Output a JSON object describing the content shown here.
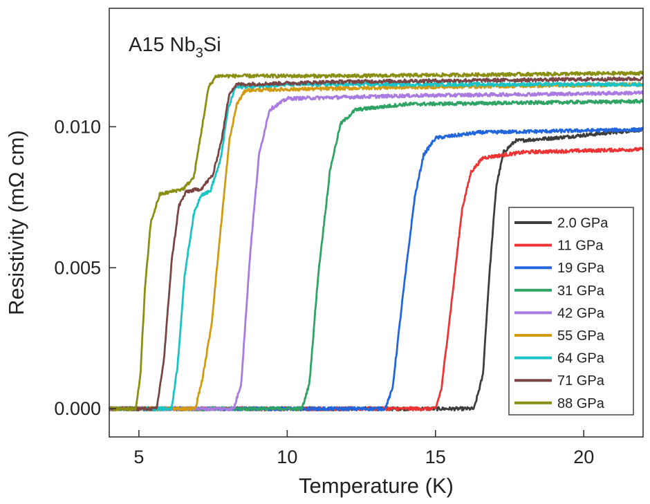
{
  "chart_data": {
    "type": "line",
    "annotation": {
      "main": "A15 Nb",
      "sub": "3",
      "suffix": "Si"
    },
    "xlabel": "Temperature (K)",
    "ylabel": "Resistivity (mΩ cm)",
    "xlim": [
      4,
      22
    ],
    "ylim": [
      -0.001,
      0.0142
    ],
    "x_ticks": [
      5,
      10,
      15,
      20
    ],
    "y_ticks": [
      0.0,
      0.005,
      0.01
    ],
    "x_tick_labels": [
      "5",
      "10",
      "15",
      "20"
    ],
    "y_tick_labels": [
      "0.000",
      "0.005",
      "0.010"
    ],
    "grid": false,
    "legend_position": "bottom-right",
    "series": [
      {
        "name": "2.0 GPa",
        "color": "#3d3d3d",
        "points": [
          [
            4,
            0
          ],
          [
            16.3,
            0
          ],
          [
            16.6,
            0.0012
          ],
          [
            16.8,
            0.0045
          ],
          [
            17.05,
            0.0079
          ],
          [
            17.3,
            0.0091
          ],
          [
            17.7,
            0.0095
          ],
          [
            19,
            0.0096
          ],
          [
            22,
            0.0099
          ]
        ]
      },
      {
        "name": "11 GPa",
        "color": "#ee3333",
        "points": [
          [
            4,
            0
          ],
          [
            15.0,
            0
          ],
          [
            15.2,
            0.0007
          ],
          [
            15.6,
            0.0043
          ],
          [
            15.9,
            0.0071
          ],
          [
            16.2,
            0.0084
          ],
          [
            16.6,
            0.0089
          ],
          [
            18,
            0.0091
          ],
          [
            22,
            0.0092
          ]
        ]
      },
      {
        "name": "19 GPa",
        "color": "#2266dd",
        "points": [
          [
            4,
            0
          ],
          [
            13.3,
            0
          ],
          [
            13.55,
            0.0007
          ],
          [
            13.9,
            0.004
          ],
          [
            14.3,
            0.0075
          ],
          [
            14.6,
            0.009
          ],
          [
            15.0,
            0.0096
          ],
          [
            16.5,
            0.0098
          ],
          [
            22,
            0.0099
          ]
        ]
      },
      {
        "name": "31 GPa",
        "color": "#2ea364",
        "points": [
          [
            4,
            0
          ],
          [
            10.5,
            0
          ],
          [
            10.75,
            0.0009
          ],
          [
            11.05,
            0.0048
          ],
          [
            11.45,
            0.0085
          ],
          [
            11.8,
            0.0101
          ],
          [
            12.3,
            0.0106
          ],
          [
            14,
            0.0108
          ],
          [
            22,
            0.0109
          ]
        ]
      },
      {
        "name": "42 GPa",
        "color": "#a97be0",
        "points": [
          [
            4,
            0
          ],
          [
            8.2,
            0
          ],
          [
            8.45,
            0.0009
          ],
          [
            8.75,
            0.0055
          ],
          [
            9.05,
            0.009
          ],
          [
            9.4,
            0.0106
          ],
          [
            10.0,
            0.011
          ],
          [
            14,
            0.0111
          ],
          [
            22,
            0.0112
          ]
        ]
      },
      {
        "name": "55 GPa",
        "color": "#d19a10",
        "points": [
          [
            4,
            0
          ],
          [
            6.9,
            0
          ],
          [
            7.15,
            0.0011
          ],
          [
            7.45,
            0.003
          ],
          [
            7.75,
            0.0063
          ],
          [
            8.05,
            0.0095
          ],
          [
            8.3,
            0.0108
          ],
          [
            8.6,
            0.0113
          ],
          [
            14,
            0.0114
          ],
          [
            22,
            0.0115
          ]
        ]
      },
      {
        "name": "64 GPa",
        "color": "#19c2c4",
        "points": [
          [
            4,
            0
          ],
          [
            6.1,
            0
          ],
          [
            6.3,
            0.0015
          ],
          [
            6.55,
            0.0048
          ],
          [
            6.85,
            0.0069
          ],
          [
            7.1,
            0.0076
          ],
          [
            7.4,
            0.0077
          ],
          [
            7.75,
            0.0088
          ],
          [
            8.0,
            0.0106
          ],
          [
            8.25,
            0.0114
          ],
          [
            10,
            0.0115
          ],
          [
            22,
            0.0115
          ]
        ]
      },
      {
        "name": "71 GPa",
        "color": "#7a4545",
        "points": [
          [
            4,
            0
          ],
          [
            5.6,
            0
          ],
          [
            5.85,
            0.0018
          ],
          [
            6.1,
            0.0052
          ],
          [
            6.35,
            0.0072
          ],
          [
            6.6,
            0.0077
          ],
          [
            7.1,
            0.0078
          ],
          [
            7.5,
            0.0083
          ],
          [
            7.8,
            0.0096
          ],
          [
            8.05,
            0.0112
          ],
          [
            8.3,
            0.0115
          ],
          [
            12,
            0.0116
          ],
          [
            22,
            0.0117
          ]
        ]
      },
      {
        "name": "88 GPa",
        "color": "#8a8f14",
        "points": [
          [
            4,
            0
          ],
          [
            4.9,
            0
          ],
          [
            5.05,
            0.0012
          ],
          [
            5.2,
            0.0042
          ],
          [
            5.4,
            0.0066
          ],
          [
            5.7,
            0.0076
          ],
          [
            6.5,
            0.0078
          ],
          [
            6.85,
            0.0082
          ],
          [
            7.1,
            0.0098
          ],
          [
            7.35,
            0.0114
          ],
          [
            7.6,
            0.0118
          ],
          [
            12,
            0.0118
          ],
          [
            22,
            0.0119
          ]
        ]
      }
    ]
  }
}
